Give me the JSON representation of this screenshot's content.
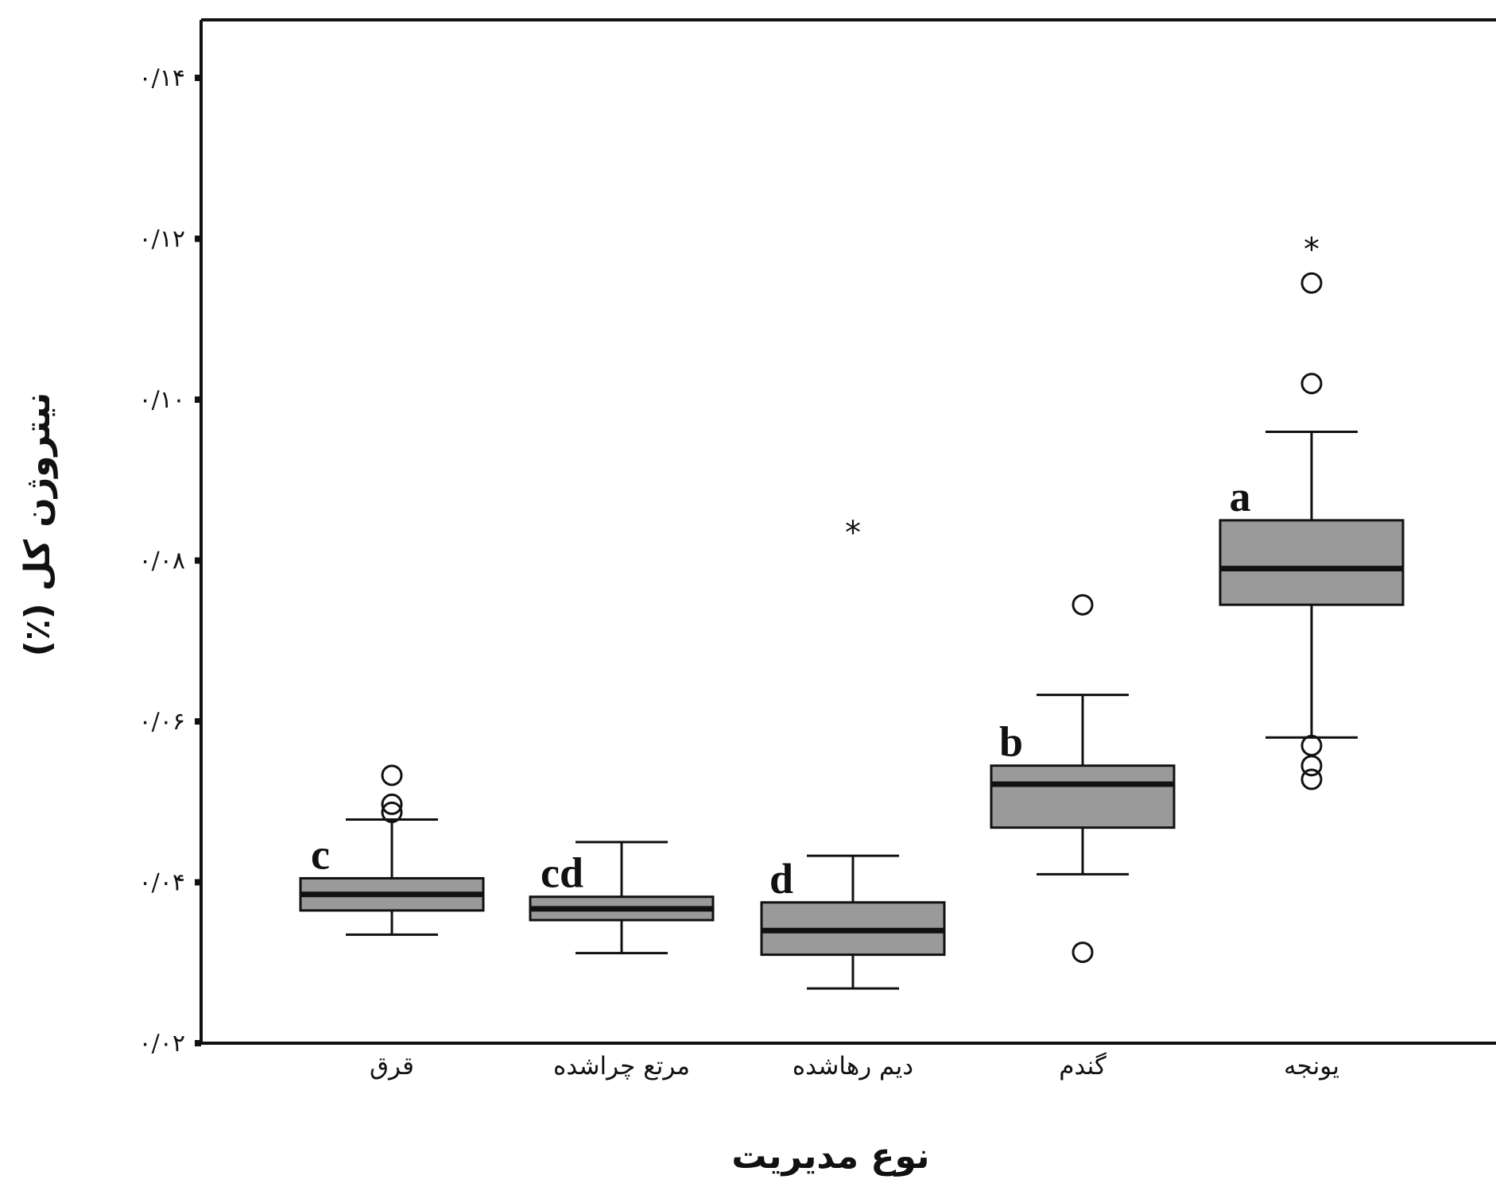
{
  "chart_data": {
    "type": "boxplot",
    "xlabel": "نوع مدیریت",
    "ylabel": "نیتروژن کل (٪)",
    "ylim": [
      0.02,
      0.145
    ],
    "yticks": [
      0.02,
      0.04,
      0.06,
      0.08,
      0.1,
      0.12,
      0.14
    ],
    "ytick_labels": [
      "۰/۰۲",
      "۰/۰۴",
      "۰/۰۶",
      "۰/۰۸",
      "۰/۱۰",
      "۰/۱۲",
      "۰/۱۴"
    ],
    "grid": false,
    "box_fill_color": "#9a9a9a",
    "categories": [
      "قرق",
      "مرتع چراشده",
      "دیم رهاشده",
      "گندم",
      "یونجه"
    ],
    "boxes": [
      {
        "category": "قرق",
        "letter": "c",
        "whisker_low": 0.0335,
        "q1": 0.0365,
        "median": 0.0385,
        "q3": 0.0405,
        "whisker_high": 0.0478,
        "outliers": [
          0.0487,
          0.0497,
          0.0533
        ],
        "extremes": []
      },
      {
        "category": "مرتع چراشده",
        "letter": "cd",
        "whisker_low": 0.0312,
        "q1": 0.0353,
        "median": 0.0367,
        "q3": 0.0382,
        "whisker_high": 0.045,
        "outliers": [],
        "extremes": []
      },
      {
        "category": "دیم رهاشده",
        "letter": "d",
        "whisker_low": 0.0268,
        "q1": 0.031,
        "median": 0.034,
        "q3": 0.0375,
        "whisker_high": 0.0433,
        "outliers": [],
        "extremes": [
          0.0843
        ]
      },
      {
        "category": "گندم",
        "letter": "b",
        "whisker_low": 0.041,
        "q1": 0.0468,
        "median": 0.0522,
        "q3": 0.0545,
        "whisker_high": 0.0633,
        "outliers": [
          0.0313,
          0.0745
        ],
        "extremes": []
      },
      {
        "category": "یونجه",
        "letter": "a",
        "whisker_low": 0.058,
        "q1": 0.0745,
        "median": 0.079,
        "q3": 0.085,
        "whisker_high": 0.096,
        "outliers": [
          0.0528,
          0.0545,
          0.057,
          0.102,
          0.1145
        ],
        "extremes": [
          0.1195
        ]
      }
    ]
  }
}
